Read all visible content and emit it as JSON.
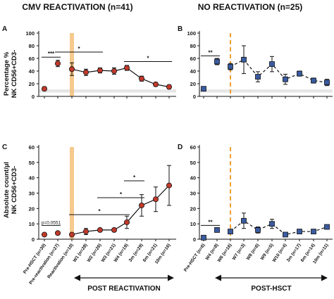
{
  "chart_data": [
    {
      "panel": "A",
      "type": "line",
      "title": "CMV REACTIVATION (n=41)",
      "ylabel": "Percentage %",
      "ylabel2": "NK CD56+CD3-",
      "ylim": [
        0,
        100
      ],
      "yticks": [
        "0",
        "20",
        "40",
        "60",
        "80",
        "100"
      ],
      "categories": [
        "Pre-HSCT (n=30)",
        "Pre-reactivation (n=27)",
        "Reactivation (n=10)",
        "W1 (n=28)",
        "W2 (n=26)",
        "W3 (n=21)",
        "W4 (n=19)",
        "3m (n=29)",
        "6m (n=21)",
        "10m (n=16)"
      ],
      "values": [
        12,
        52,
        43,
        38,
        41,
        40,
        45,
        28,
        19,
        15
      ],
      "err": [
        3,
        5,
        10,
        5,
        4,
        5,
        4,
        4,
        3,
        3
      ],
      "connected_from": 2,
      "marker_color": "#c0392b",
      "line_style": "solid",
      "band": [
        6,
        11
      ],
      "marker_line_category": 2,
      "significance": [
        {
          "from": 0,
          "to": 1,
          "y": 62,
          "label": "***"
        },
        {
          "from": 1,
          "to": 4,
          "y": 70,
          "label": "*"
        },
        {
          "from": 6,
          "to": 9,
          "y": 55,
          "label": "*"
        }
      ]
    },
    {
      "panel": "B",
      "type": "line",
      "title": "NO REACTIVATION (n=25)",
      "ylim": [
        0,
        100
      ],
      "yticks": [
        "0",
        "20",
        "40",
        "60",
        "80",
        "100"
      ],
      "categories": [
        "Pre-HSCT (n=6)",
        "W4 (n=8)",
        "W6 (n=16)",
        "W7 (n=3)",
        "W8 (n=6)",
        "W9 (n=5)",
        "W10 (n=4)",
        "3m (n=17)",
        "6m (n=14)",
        "10m (n=11)"
      ],
      "values": [
        12,
        55,
        47,
        58,
        31,
        51,
        27,
        36,
        25,
        22
      ],
      "err": [
        3,
        5,
        5,
        22,
        8,
        12,
        8,
        4,
        4,
        5
      ],
      "connected_from": 2,
      "marker_color": "#3a5ba0",
      "line_style": "dashed",
      "band": [
        6,
        11
      ],
      "marker_line_category": 2,
      "significance": [
        {
          "from": 0,
          "to": 1,
          "y": 64,
          "label": "**"
        }
      ]
    },
    {
      "panel": "C",
      "type": "line",
      "ylabel": "Absolute count/µl",
      "ylabel2": "NK CD56+CD3-",
      "ylim": [
        0,
        60
      ],
      "yticks": [
        "0",
        "10",
        "20",
        "30",
        "40",
        "50",
        "60"
      ],
      "categories": [
        "Pre-HSCT (n=30)",
        "Pre-reactivation (n=27)",
        "Reactivation (n=10)",
        "W1 (n=28)",
        "W2 (n=26)",
        "W3 (n=21)",
        "W4 (n=19)",
        "3m (n=29)",
        "6m (n=21)",
        "10m (n=16)"
      ],
      "values": [
        3,
        4,
        3,
        5,
        6,
        6,
        11,
        22,
        26,
        35
      ],
      "err": [
        1,
        1,
        1,
        2,
        1,
        1,
        4,
        7,
        8,
        13
      ],
      "connected_from": 2,
      "marker_color": "#c0392b",
      "line_style": "solid",
      "marker_line_category": 2,
      "significance": [
        {
          "from": 0,
          "to": 1,
          "y": 9,
          "label": "p=0.0551",
          "small": true
        },
        {
          "from": 2,
          "to": 6,
          "y": 16,
          "label": "*"
        },
        {
          "from": 4,
          "to": 7,
          "y": 27,
          "label": "*"
        },
        {
          "from": 6,
          "to": 7,
          "y": 38,
          "label": "*"
        }
      ]
    },
    {
      "panel": "D",
      "type": "line",
      "ylim": [
        0,
        60
      ],
      "yticks": [
        "0",
        "10",
        "20",
        "30",
        "40",
        "50",
        "60"
      ],
      "categories": [
        "Pre-HSCT (n=6)",
        "W4 (n=8)",
        "W6 (n=16)",
        "W7 (n=3)",
        "W8 (n=6)",
        "W9 (n=5)",
        "W10 (n=4)",
        "3m (n=17)",
        "6m (n=14)",
        "10m (n=11)"
      ],
      "values": [
        1,
        6,
        5,
        12,
        6,
        10,
        3,
        5,
        5,
        8
      ],
      "err": [
        0.5,
        1,
        1,
        5,
        2,
        3,
        1,
        1,
        1,
        1
      ],
      "connected_from": 2,
      "marker_color": "#3a5ba0",
      "line_style": "dashed",
      "marker_line_category": 2,
      "significance": [
        {
          "from": 0,
          "to": 1,
          "y": 9,
          "label": "**"
        }
      ]
    }
  ],
  "bottom_labels": {
    "left": "POST REACTIVATION",
    "right": "POST-HSCT"
  },
  "colors": {
    "orange_line": "#f5c07a",
    "orange_dashed": "#f0a030",
    "band": "#e6e6e6",
    "red_marker": "#c0392b",
    "blue_marker": "#3a5ba0"
  }
}
